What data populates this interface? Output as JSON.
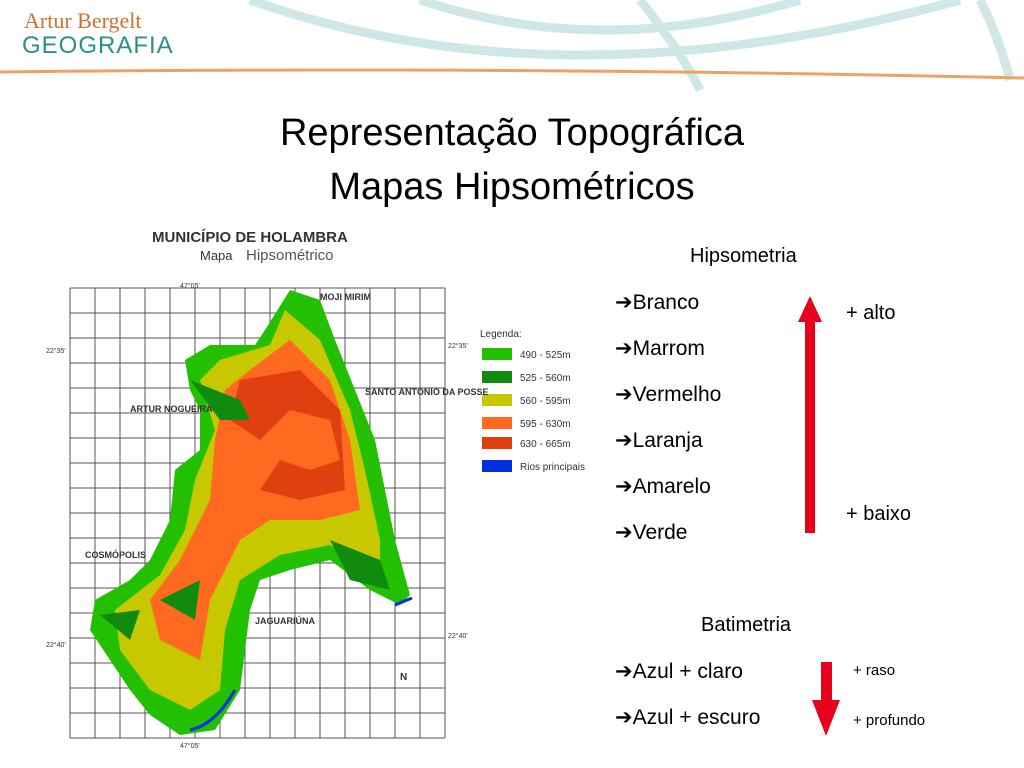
{
  "logo": {
    "line1": "Artur Bergelt",
    "line2": "GEOGRAFIA"
  },
  "title": {
    "line1": "Representação Topográfica",
    "line2": "Mapas Hipsométricos"
  },
  "map": {
    "title": "MUNICÍPIO DE HOLAMBRA",
    "subtitle_prefix": "Mapa",
    "subtitle": "Hipsométrico",
    "legend_title": "Legenda:",
    "legend": [
      "490 - 525m",
      "525 - 560m",
      "560 - 595m",
      "595 - 630m",
      "630 - 665m",
      "Rios principais"
    ],
    "places": [
      "MOJI MIRIM",
      "SANTO ANTONIO DA POSSE",
      "ARTUR NOGUEIRA",
      "COSMÓPOLIS",
      "JAGUARIÚNA"
    ],
    "coords": {
      "top": "47°05'",
      "bottom": "47°05'",
      "left_top": "22°35'",
      "right_top": "22°35'",
      "left_bottom": "22°40'",
      "right_bottom": "22°40'"
    },
    "north": "N"
  },
  "hipsometria": {
    "heading": "Hipsometria",
    "items": [
      "➔Branco",
      "➔Marrom",
      "➔Vermelho",
      "➔Laranja",
      "➔Amarelo",
      "➔Verde"
    ],
    "high": "+ alto",
    "low": "+ baixo"
  },
  "batimetria": {
    "heading": "Batimetria",
    "items": [
      "➔Azul + claro",
      "➔Azul + escuro"
    ],
    "shallow": "+ raso",
    "deep": "+ profundo"
  }
}
